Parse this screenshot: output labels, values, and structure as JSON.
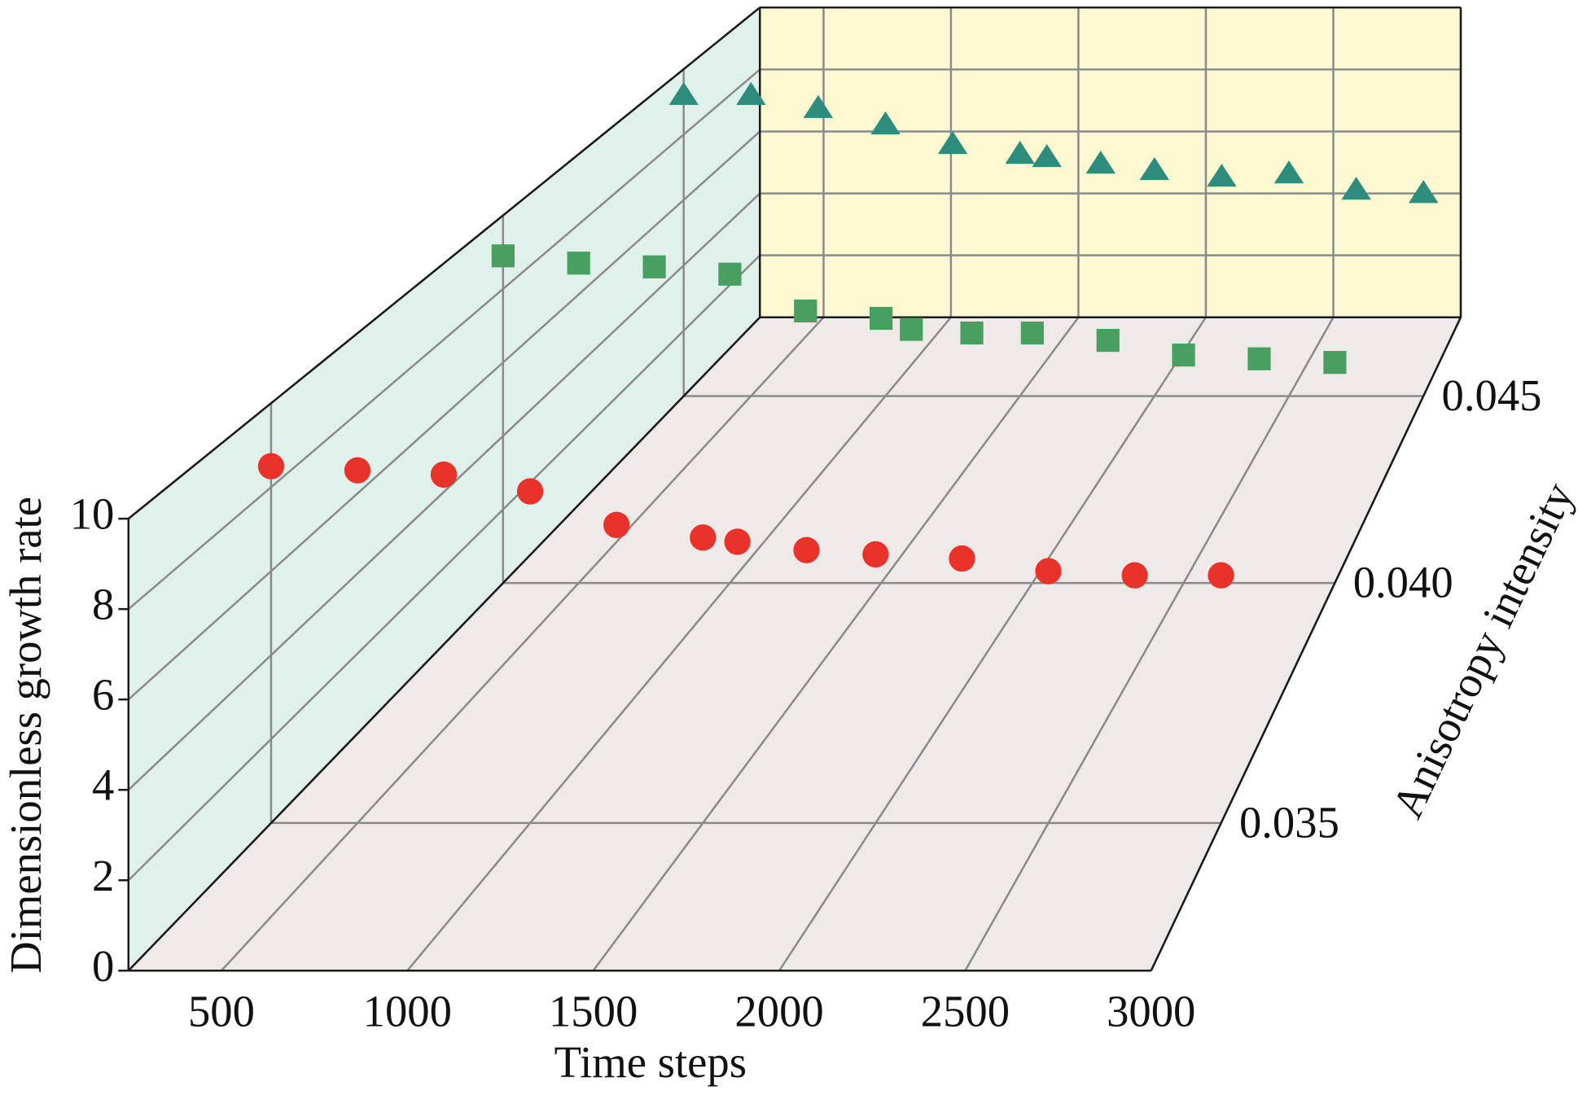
{
  "chart_data": {
    "type": "line3d",
    "x_label": "Time steps",
    "y_label": "Dimensionless growth rate",
    "z_label": "Anisotropy intensity",
    "x": [
      250,
      500,
      750,
      1000,
      1250,
      1500,
      1600,
      1800,
      2000,
      2250,
      2500,
      2750,
      3000
    ],
    "series": [
      {
        "z": 0.035,
        "color": "#e8322a",
        "marker": "circle",
        "values": [
          8.5,
          8.4,
          8.3,
          7.9,
          7.1,
          6.8,
          6.7,
          6.5,
          6.4,
          6.3,
          6.0,
          5.9,
          5.9
        ]
      },
      {
        "z": 0.04,
        "color": "#47a060",
        "marker": "square",
        "values": [
          8.9,
          8.7,
          8.6,
          8.4,
          7.4,
          7.2,
          6.9,
          6.8,
          6.8,
          6.6,
          6.2,
          6.1,
          6.0
        ]
      },
      {
        "z": 0.045,
        "color": "#2e8c7c",
        "marker": "triangle",
        "values": [
          9.2,
          9.2,
          8.8,
          8.3,
          7.7,
          7.4,
          7.3,
          7.1,
          6.9,
          6.7,
          6.8,
          6.3,
          6.2
        ]
      }
    ],
    "xlim": [
      250,
      3000
    ],
    "xticks": [
      500,
      1000,
      1500,
      2000,
      2500,
      3000
    ],
    "ylim": [
      0,
      10
    ],
    "yticks": [
      0,
      2,
      4,
      6,
      8,
      10
    ],
    "zlim": [
      0.0325,
      0.0475
    ],
    "zticks": [
      0.035,
      {
        "value": 0.04,
        "label": "0.040"
      },
      0.045
    ],
    "grid": true
  }
}
